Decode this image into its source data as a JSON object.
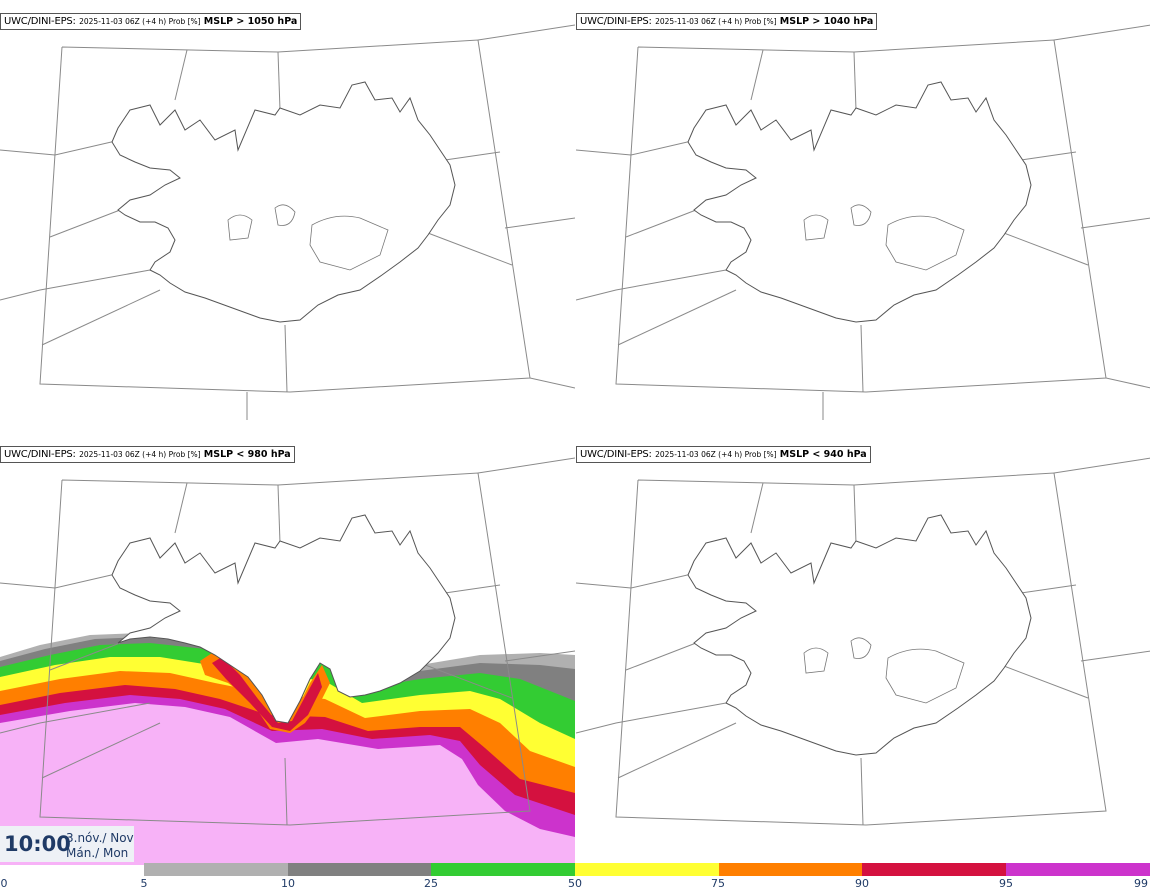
{
  "panels": [
    {
      "source": "UWC/DINI-EPS",
      "meta": "2025-11-03 06Z (+4 h) Prob [%]",
      "variable": "MSLP > 1050 hPa"
    },
    {
      "source": "UWC/DINI-EPS",
      "meta": "2025-11-03 06Z (+4 h) Prob [%]",
      "variable": "MSLP > 1040 hPa"
    },
    {
      "source": "UWC/DINI-EPS",
      "meta": "2025-11-03 06Z (+4 h) Prob [%]",
      "variable": "MSLP < 980 hPa"
    },
    {
      "source": "UWC/DINI-EPS",
      "meta": "2025-11-03 06Z (+4 h) Prob [%]",
      "variable": "MSLP < 940 hPa"
    }
  ],
  "valid_time": {
    "hour": "10:00",
    "line1": "3.nóv./ Nov",
    "line2": "Mán./ Mon"
  },
  "colorbar": {
    "ticks": [
      "0",
      "5",
      "10",
      "25",
      "50",
      "75",
      "90",
      "95",
      "99"
    ],
    "colors": [
      "#ffffff",
      "#b0b0b0",
      "#808080",
      "#33cc33",
      "#ffff33",
      "#ff7f00",
      "#d4113f",
      "#cc33cc",
      "#f7b2f7"
    ]
  }
}
